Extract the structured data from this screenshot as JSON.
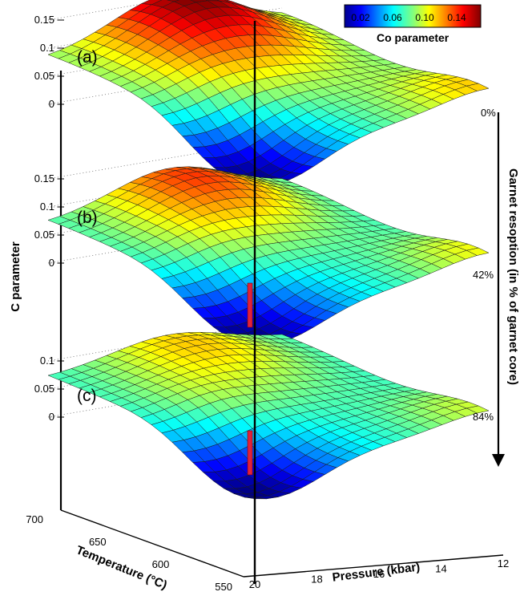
{
  "chart_data": {
    "type": "surface",
    "xlabel": "Pressure (kbar)",
    "x_ticks": [
      "12",
      "14",
      "16",
      "18",
      "20"
    ],
    "xlim": [
      12,
      20
    ],
    "ylabel": "Temperature (°C)",
    "y_ticks": [
      "550",
      "600",
      "650",
      "700"
    ],
    "ylim": [
      550,
      700
    ],
    "zlabel": "C parameter",
    "colorbar": {
      "title": "Co parameter",
      "tick_labels": [
        "0.02",
        "0.06",
        "0.10",
        "0.14"
      ],
      "range": [
        0,
        0.17
      ],
      "colors": [
        "#00008f",
        "#0040ff",
        "#00c0ff",
        "#40ffbf",
        "#c0ff40",
        "#ffc000",
        "#ff4000",
        "#800000"
      ]
    },
    "side_label": "Garnet resoption (in % of garnet core)",
    "panels": [
      {
        "label": "(a)",
        "resorption_label": "0%",
        "z_ticks": [
          "0",
          "0.05",
          "0.1",
          "0.15"
        ],
        "peak_value": 0.17,
        "edge_value": 0.08,
        "corner_value": 0.13,
        "minimum_value": 0.0
      },
      {
        "label": "(b)",
        "resorption_label": "42%",
        "z_ticks": [
          "0",
          "0.05",
          "0.1",
          "0.15"
        ],
        "peak_value": 0.14,
        "edge_value": 0.07,
        "corner_value": 0.12,
        "minimum_value": 0.0
      },
      {
        "label": "(c)",
        "resorption_label": "84%",
        "z_ticks": [
          "0",
          "0.05",
          "0.1"
        ],
        "peak_value": 0.115,
        "edge_value": 0.07,
        "corner_value": 0.11,
        "minimum_value": 0.0
      }
    ]
  }
}
